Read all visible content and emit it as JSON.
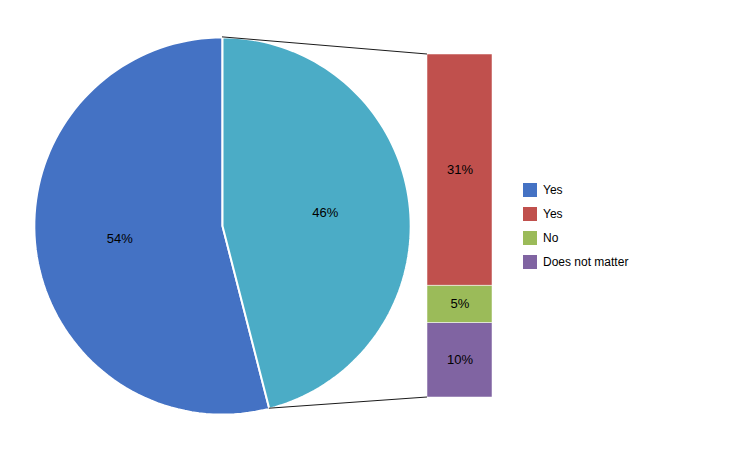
{
  "chart_data": [
    {
      "type": "pie",
      "categories": [
        "Yes",
        null
      ],
      "values": [
        54,
        46
      ],
      "value_labels": [
        "54%",
        "46%"
      ],
      "colors": [
        "#4472C4",
        "#4BACC6"
      ],
      "data_labels": true,
      "legend": "right"
    },
    {
      "type": "bar",
      "stacked": true,
      "categories": [
        null
      ],
      "series": [
        {
          "name": "Does not matter",
          "color": "#8064A2",
          "values": [
            10
          ],
          "value_labels": [
            "10%"
          ]
        },
        {
          "name": "No",
          "color": "#9BBB59",
          "values": [
            5
          ],
          "value_labels": [
            "5%"
          ]
        },
        {
          "name": "Yes",
          "color": "#C0504D",
          "values": [
            31
          ],
          "value_labels": [
            "31%"
          ]
        }
      ],
      "ylim": [
        0,
        46
      ],
      "tick_labels": false,
      "data_labels": true
    }
  ]
}
